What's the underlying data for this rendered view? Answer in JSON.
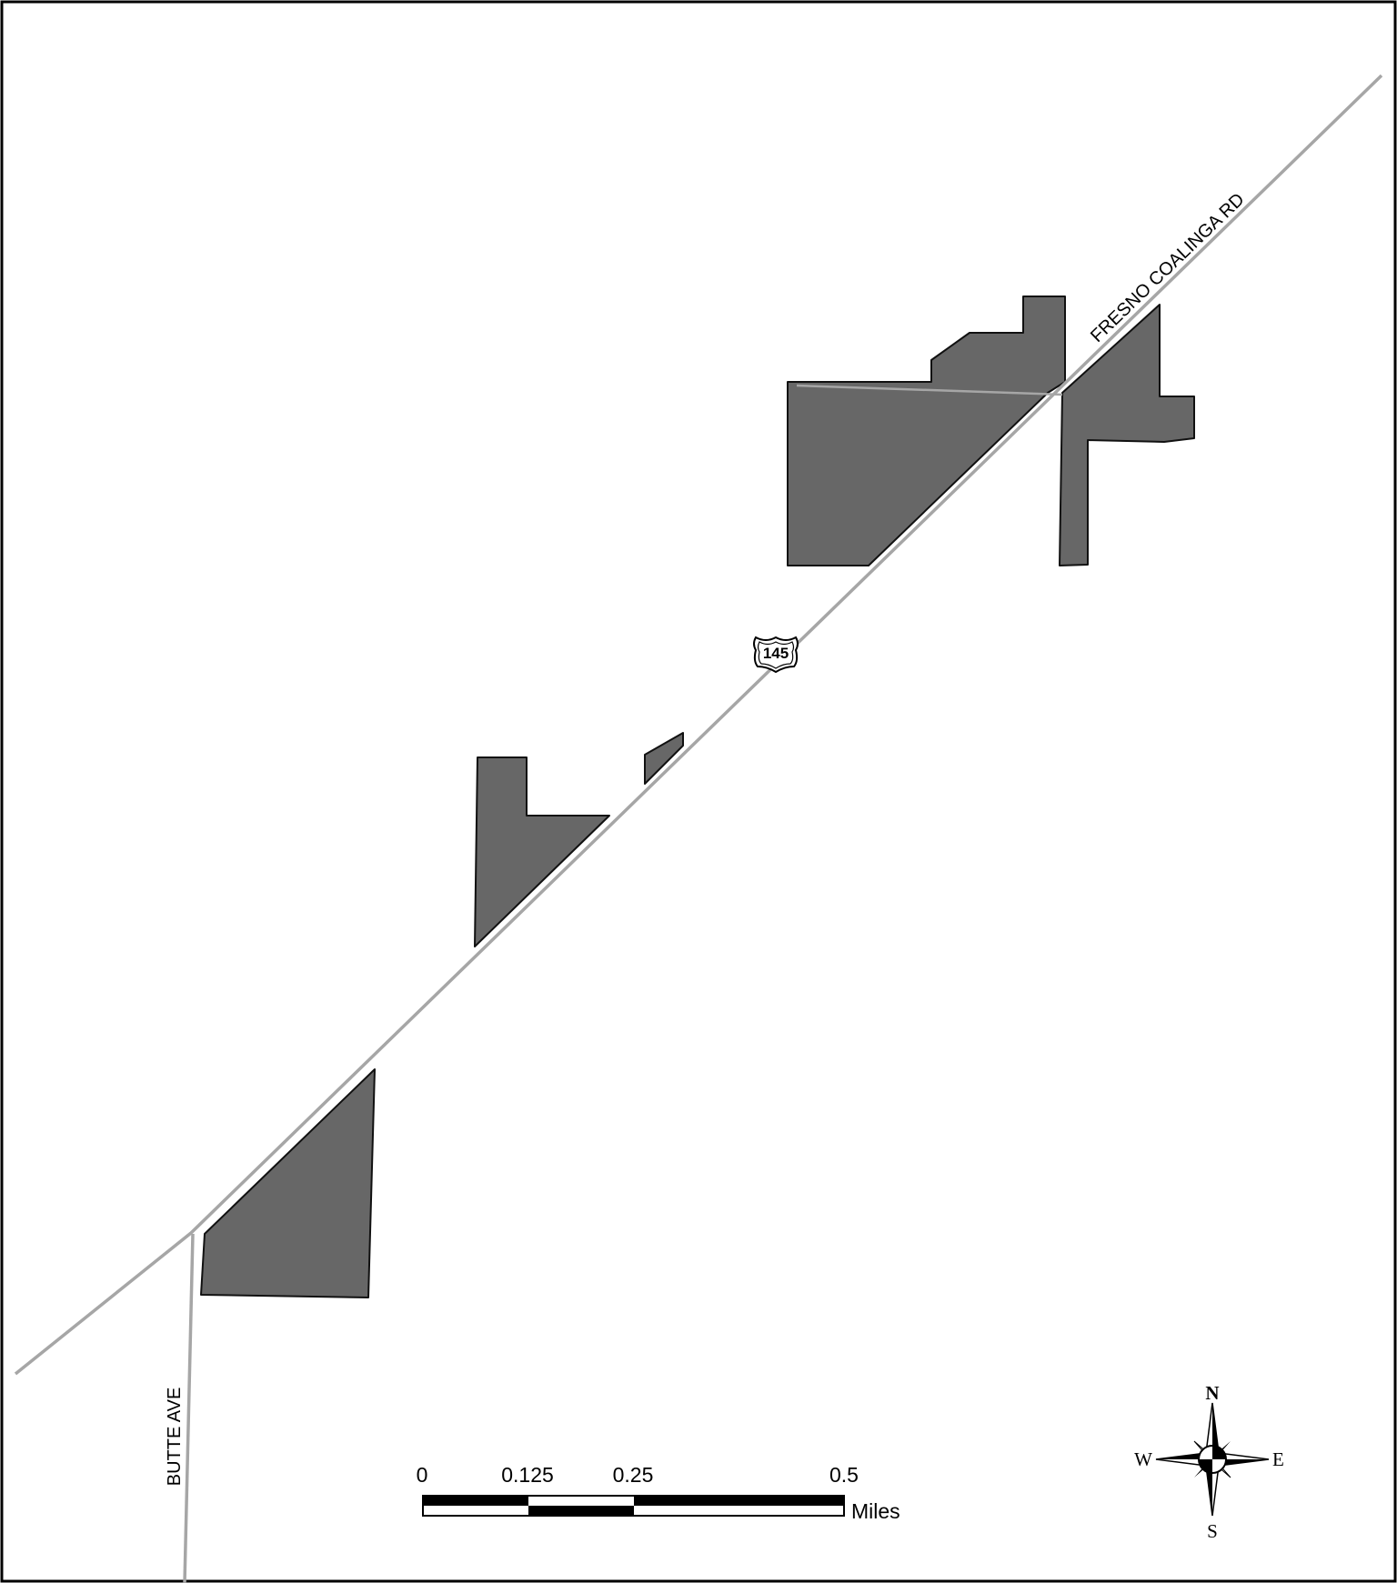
{
  "map": {
    "colors": {
      "parcel_fill": "#676767",
      "parcel_stroke": "#111111",
      "road": "#a6a6a6",
      "background": "#ffffff",
      "frame": "#000000"
    },
    "roads": {
      "main_label": "FRESNO COALINGA RD",
      "secondary_label": "BUTTE AVE"
    },
    "route_shield": {
      "number": "145",
      "icon": "us-highway-shield-icon"
    },
    "parcels_count_visible": 6
  },
  "scale_bar": {
    "ticks": [
      "0",
      "0.125",
      "0.25",
      "0.5"
    ],
    "units": "Miles"
  },
  "north_arrow": {
    "icon": "compass-rose-icon",
    "n": "N",
    "s": "S",
    "e": "E",
    "w": "W"
  }
}
